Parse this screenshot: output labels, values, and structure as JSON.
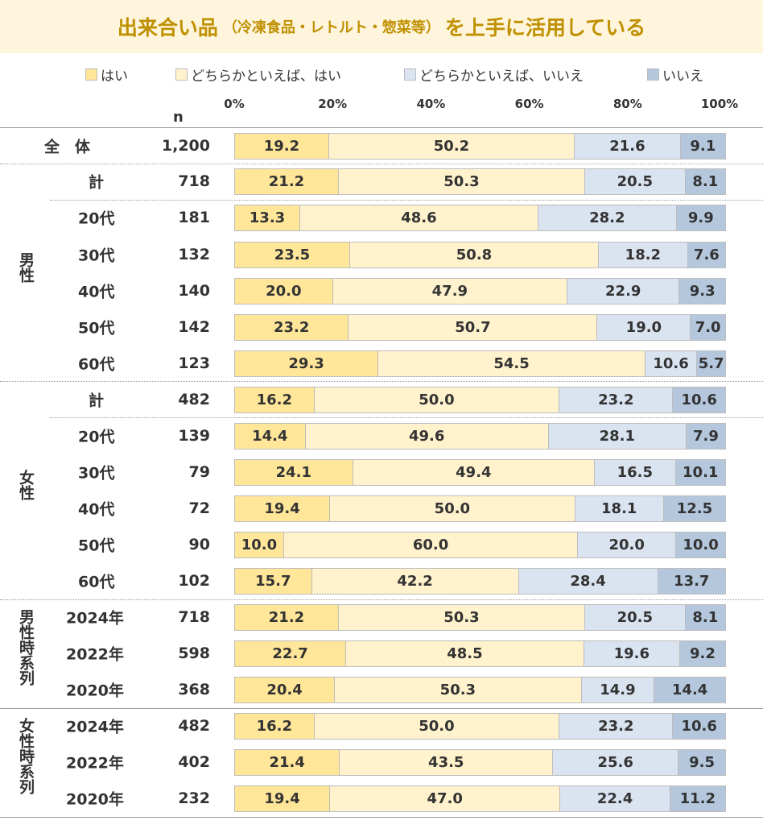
{
  "title": {
    "main_a": "出来合い品",
    "sub": "（冷凍食品・レトルト・惣菜等）",
    "main_b": "を上手に活用している"
  },
  "chart_data": {
    "type": "bar",
    "orientation": "horizontal-stacked-100",
    "title": "出来合い品（冷凍食品・レトルト・惣菜等）を上手に活用している",
    "n_header": "n",
    "xlim": [
      0,
      100
    ],
    "ticks": [
      "0%",
      "20%",
      "40%",
      "60%",
      "80%",
      "100%"
    ],
    "legend_placement": "top",
    "series": [
      {
        "name": "はい",
        "color": "#ffe699"
      },
      {
        "name": "どちらかといえば、はい",
        "color": "#fff2cc"
      },
      {
        "name": "どちらかといえば、いいえ",
        "color": "#dae3f0"
      },
      {
        "name": "いいえ",
        "color": "#b4c7dd"
      }
    ],
    "groups": [
      {
        "label": "",
        "rows": [
          0
        ]
      },
      {
        "label": "男性",
        "rows": [
          1,
          2,
          3,
          4,
          5,
          6
        ]
      },
      {
        "label": "女性",
        "rows": [
          7,
          8,
          9,
          10,
          11,
          12
        ]
      },
      {
        "label": "男性時系列",
        "rows": [
          13,
          14,
          15
        ]
      },
      {
        "label": "女性時系列",
        "rows": [
          16,
          17,
          18
        ]
      }
    ],
    "rows": [
      {
        "label": "全　体",
        "n": "1,200",
        "values": [
          19.2,
          50.2,
          21.6,
          9.1
        ]
      },
      {
        "label": "計",
        "n": "718",
        "values": [
          21.2,
          50.3,
          20.5,
          8.1
        ]
      },
      {
        "label": "20代",
        "n": "181",
        "values": [
          13.3,
          48.6,
          28.2,
          9.9
        ]
      },
      {
        "label": "30代",
        "n": "132",
        "values": [
          23.5,
          50.8,
          18.2,
          7.6
        ]
      },
      {
        "label": "40代",
        "n": "140",
        "values": [
          20.0,
          47.9,
          22.9,
          9.3
        ]
      },
      {
        "label": "50代",
        "n": "142",
        "values": [
          23.2,
          50.7,
          19.0,
          7.0
        ]
      },
      {
        "label": "60代",
        "n": "123",
        "values": [
          29.3,
          54.5,
          10.6,
          5.7
        ]
      },
      {
        "label": "計",
        "n": "482",
        "values": [
          16.2,
          50.0,
          23.2,
          10.6
        ]
      },
      {
        "label": "20代",
        "n": "139",
        "values": [
          14.4,
          49.6,
          28.1,
          7.9
        ]
      },
      {
        "label": "30代",
        "n": "79",
        "values": [
          24.1,
          49.4,
          16.5,
          10.1
        ]
      },
      {
        "label": "40代",
        "n": "72",
        "values": [
          19.4,
          50.0,
          18.1,
          12.5
        ]
      },
      {
        "label": "50代",
        "n": "90",
        "values": [
          10.0,
          60.0,
          20.0,
          10.0
        ]
      },
      {
        "label": "60代",
        "n": "102",
        "values": [
          15.7,
          42.2,
          28.4,
          13.7
        ]
      },
      {
        "label": "2024年",
        "n": "718",
        "values": [
          21.2,
          50.3,
          20.5,
          8.1
        ]
      },
      {
        "label": "2022年",
        "n": "598",
        "values": [
          22.7,
          48.5,
          19.6,
          9.2
        ]
      },
      {
        "label": "2020年",
        "n": "368",
        "values": [
          20.4,
          50.3,
          14.9,
          14.4
        ]
      },
      {
        "label": "2024年",
        "n": "482",
        "values": [
          16.2,
          50.0,
          23.2,
          10.6
        ]
      },
      {
        "label": "2022年",
        "n": "402",
        "values": [
          21.4,
          43.5,
          25.6,
          9.5
        ]
      },
      {
        "label": "2020年",
        "n": "232",
        "values": [
          19.4,
          47.0,
          22.4,
          11.2
        ]
      }
    ]
  }
}
